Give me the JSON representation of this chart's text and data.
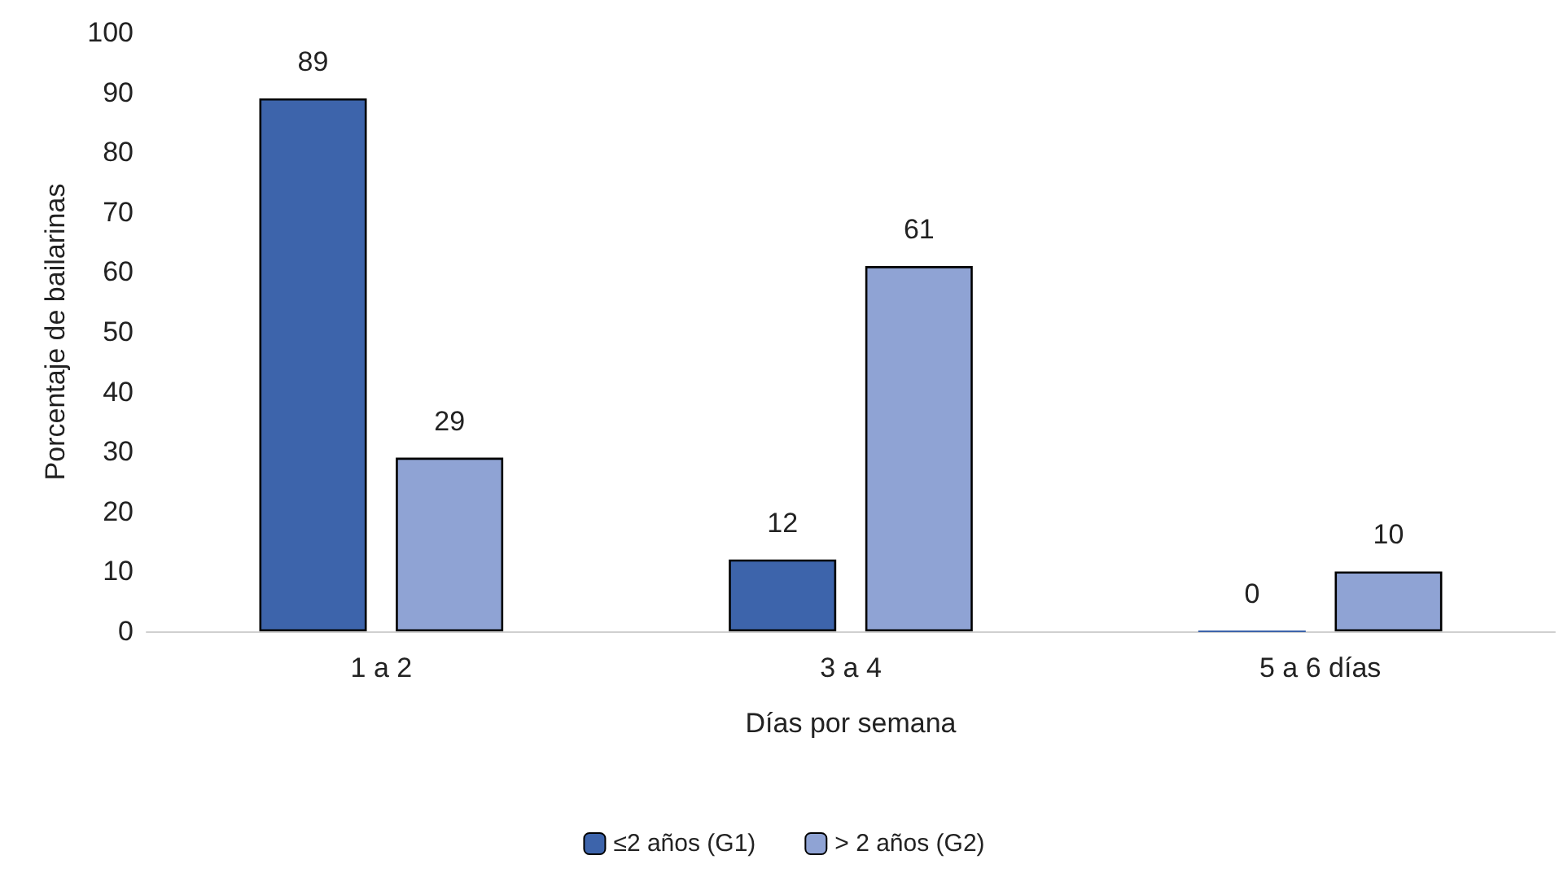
{
  "chart_data": {
    "type": "bar",
    "xlabel": "Días por semana",
    "ylabel": "Porcentaje de bailarinas",
    "categories": [
      "1 a 2",
      "3 a 4",
      "5 a 6 días"
    ],
    "series": [
      {
        "name": "≤2 años (G1)",
        "color": "#3d64ab",
        "values": [
          89,
          12,
          0
        ]
      },
      {
        "name": "> 2 años (G2)",
        "color": "#8fa3d4",
        "values": [
          29,
          61,
          10
        ]
      }
    ],
    "ylim": [
      0,
      100
    ],
    "yticks": [
      0,
      10,
      20,
      30,
      40,
      50,
      60,
      70,
      80,
      90,
      100
    ],
    "grid": false,
    "legend": "bottom",
    "data_labels": true
  }
}
